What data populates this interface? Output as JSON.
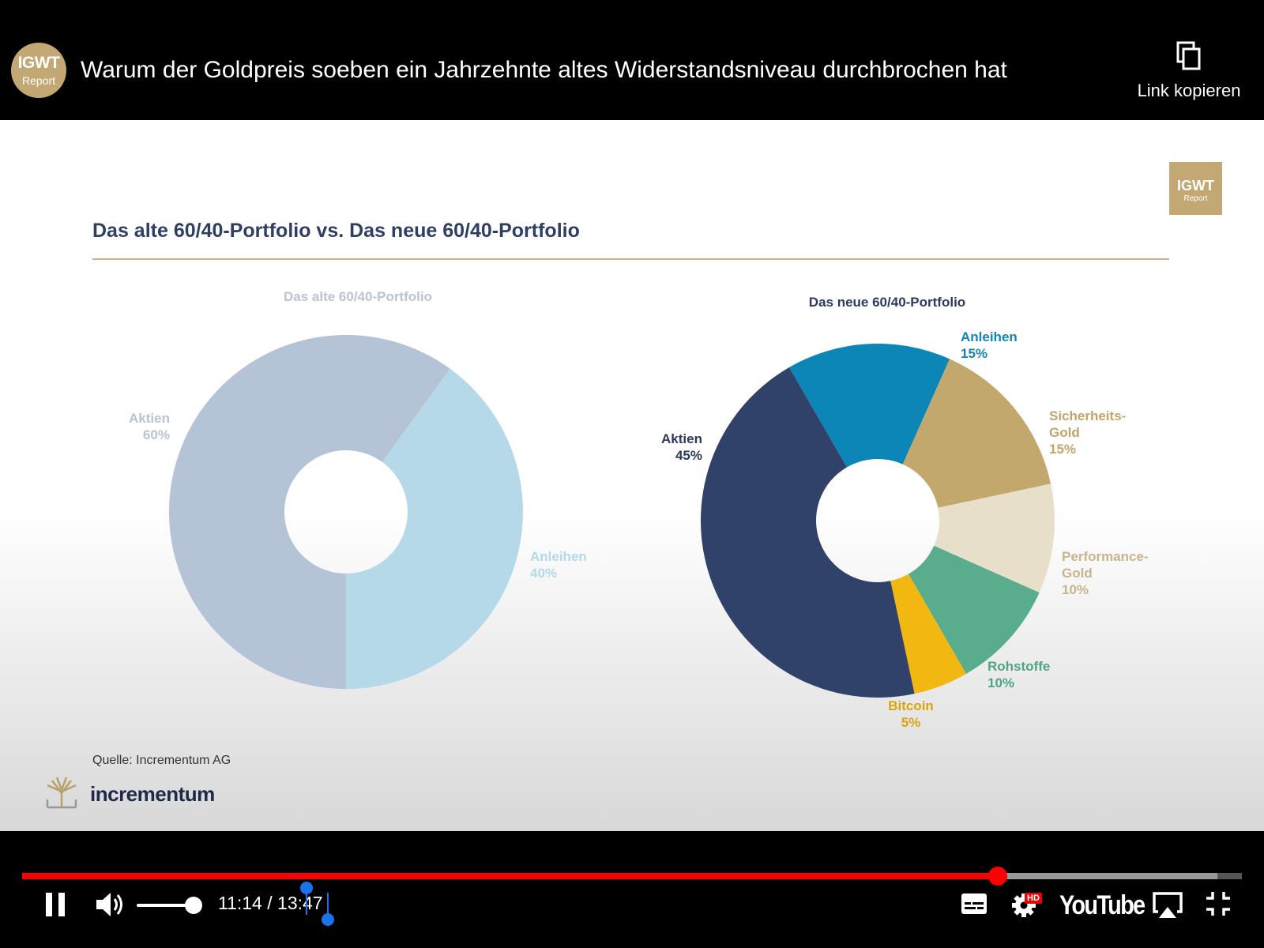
{
  "header": {
    "channel_avatar": {
      "line1": "IGWT",
      "line2": "Report"
    },
    "title": "Warum der Goldpreis soeben ein Jahrzehnte altes Widerstandsniveau durchbrochen hat",
    "copy_link_label": "Link kopieren",
    "copy_link_icon": "copy-icon"
  },
  "slide": {
    "brand_box": {
      "line1": "IGWT",
      "line2": "Report"
    },
    "title": "Das alte 60/40-Portfolio vs. Das neue 60/40-Portfolio",
    "source": "Quelle: Incrementum AG",
    "logo_text": "incrementum"
  },
  "chart_data": [
    {
      "type": "pie",
      "donut": true,
      "title": "Das alte 60/40-Portfolio",
      "slices": [
        {
          "label_line1": "Aktien",
          "label_line2": "60%",
          "value": 60,
          "color": "#b4c3d6",
          "label_color": "#b7c4d6"
        },
        {
          "label_line1": "Anleihen",
          "label_line2": "40%",
          "value": 40,
          "color": "#b5d9e8",
          "label_color": "#b3d9ea"
        }
      ]
    },
    {
      "type": "pie",
      "donut": true,
      "title": "Das neue 60/40-Portfolio",
      "slices": [
        {
          "label_line1": "Anleihen",
          "label_line2": "15%",
          "value": 15,
          "color": "#0b86b7",
          "label_color": "#1384b4"
        },
        {
          "label_line1": "Sicherheits-",
          "label_line2": "Gold",
          "label_line3": "15%",
          "value": 15,
          "color": "#c3a86e",
          "label_color": "#c2a56b"
        },
        {
          "label_line1": "Performance-",
          "label_line2": "Gold",
          "label_line3": "10%",
          "value": 10,
          "color": "#e8dfcb",
          "label_color": "#c8b48c"
        },
        {
          "label_line1": "Rohstoffe",
          "label_line2": "10%",
          "value": 10,
          "color": "#59ad8c",
          "label_color": "#4ea583"
        },
        {
          "label_line1": "Bitcoin",
          "label_line2": "5%",
          "value": 5,
          "color": "#f3b711",
          "label_color": "#d9a311"
        },
        {
          "label_line1": "Aktien",
          "label_line2": "45%",
          "value": 45,
          "color": "#30416a",
          "label_color": "#2b3a5e"
        }
      ]
    }
  ],
  "player": {
    "progress_played_fraction": 0.8,
    "progress_buffered_fraction": 0.98,
    "volume_fraction": 0.9,
    "time_current": "11:14",
    "time_separator": " / ",
    "time_total": "13:47",
    "hd_badge": "HD",
    "youtube_logo": "YouTube",
    "icons": [
      "pause-icon",
      "volume-icon",
      "subtitles-icon",
      "settings-icon",
      "airplay-icon",
      "exit-fullscreen-icon"
    ]
  }
}
